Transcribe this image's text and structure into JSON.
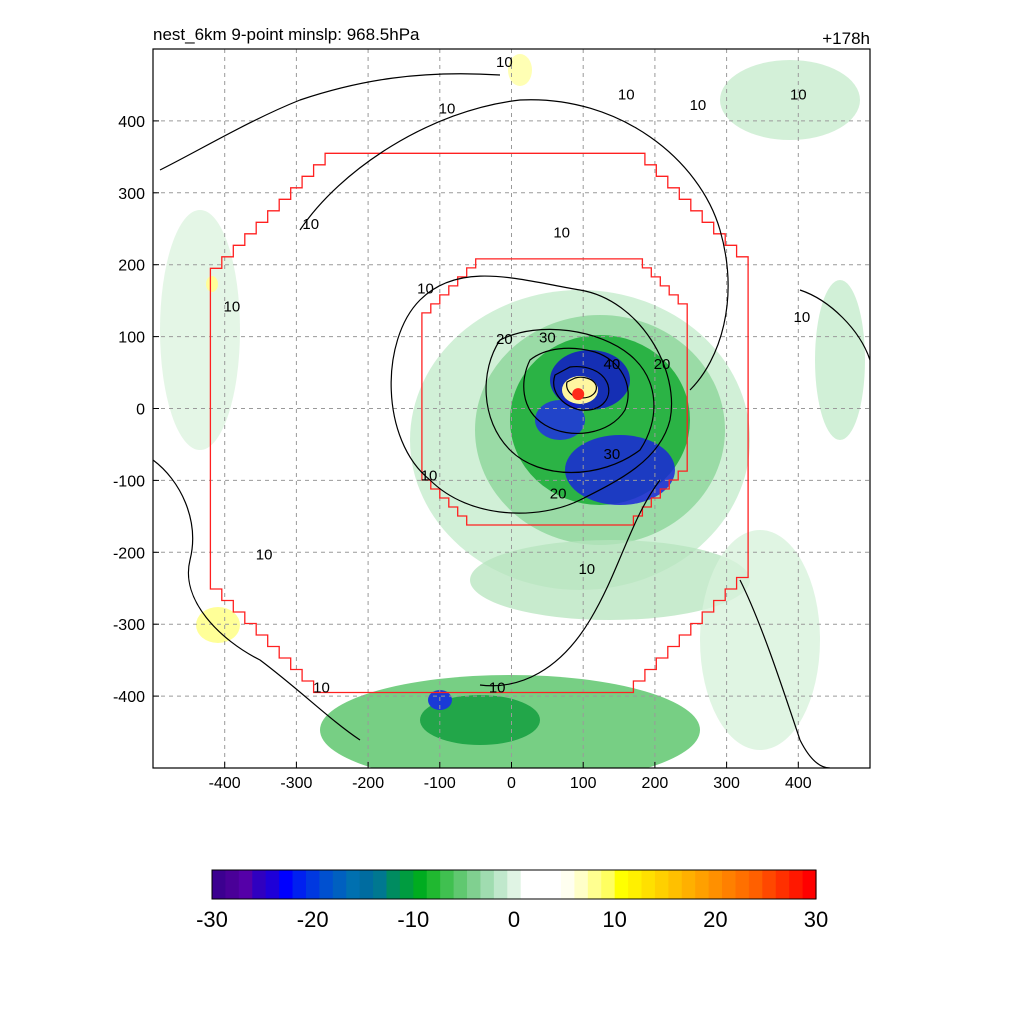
{
  "header": {
    "left_title": "nest_6km  9-point minslp: 968.5hPa",
    "right_title": "+178h"
  },
  "chart_data": {
    "type": "heatmap",
    "x_range": [
      -500,
      500
    ],
    "y_range": [
      -500,
      500
    ],
    "x_ticks": [
      -400,
      -300,
      -200,
      -100,
      0,
      100,
      200,
      300,
      400
    ],
    "y_ticks": [
      400,
      300,
      200,
      100,
      0,
      -100,
      -200,
      -300,
      -400
    ],
    "grid": true,
    "storm_center": {
      "x": 93,
      "y": 20,
      "color": "#ff2a1a"
    },
    "domain_outline_color": "#ff2020",
    "outer_domain_halfwidth": 375,
    "inner_domain_halfwidth": 185,
    "inner_domain_center": {
      "x": 60,
      "y": 23
    },
    "contour_labels": [
      {
        "text": "10",
        "x": -10,
        "y": 475
      },
      {
        "text": "10",
        "x": -90,
        "y": 410
      },
      {
        "text": "10",
        "x": 160,
        "y": 430
      },
      {
        "text": "10",
        "x": 260,
        "y": 415
      },
      {
        "text": "10",
        "x": 400,
        "y": 430
      },
      {
        "text": "10",
        "x": -280,
        "y": 250
      },
      {
        "text": "10",
        "x": 70,
        "y": 238
      },
      {
        "text": "10",
        "x": -120,
        "y": 160
      },
      {
        "text": "10",
        "x": -390,
        "y": 135
      },
      {
        "text": "10",
        "x": 405,
        "y": 120
      },
      {
        "text": "20",
        "x": -10,
        "y": 90
      },
      {
        "text": "30",
        "x": 50,
        "y": 92
      },
      {
        "text": "40",
        "x": 140,
        "y": 55
      },
      {
        "text": "20",
        "x": 210,
        "y": 55
      },
      {
        "text": "30",
        "x": 140,
        "y": -70
      },
      {
        "text": "20",
        "x": 65,
        "y": -125
      },
      {
        "text": "10",
        "x": -115,
        "y": -100
      },
      {
        "text": "10",
        "x": -345,
        "y": -210
      },
      {
        "text": "10",
        "x": 105,
        "y": -230
      },
      {
        "text": "10",
        "x": -265,
        "y": -395
      },
      {
        "text": "10",
        "x": -20,
        "y": -395
      }
    ],
    "colorbar": {
      "min": -30,
      "max": 30,
      "tick_labels": [
        "-30",
        "-20",
        "-10",
        "0",
        "10",
        "20",
        "30"
      ],
      "colors": [
        "#3c0090",
        "#4a0098",
        "#5500a8",
        "#3000c0",
        "#1e00d8",
        "#0000ff",
        "#0020f0",
        "#0038e0",
        "#0050d0",
        "#0060c0",
        "#0070b0",
        "#006ca0",
        "#007890",
        "#008c60",
        "#009c40",
        "#00ac20",
        "#20b830",
        "#40c050",
        "#60c870",
        "#80d090",
        "#a0dcb0",
        "#c0e8cc",
        "#e0f4e4",
        "#ffffff",
        "#ffffff",
        "#ffffff",
        "#fffff0",
        "#ffffc8",
        "#ffff90",
        "#ffff60",
        "#ffff00",
        "#fff000",
        "#ffe000",
        "#ffd000",
        "#ffc000",
        "#ffb000",
        "#ffa000",
        "#ff9000",
        "#ff8000",
        "#ff7000",
        "#ff6000",
        "#ff4800",
        "#ff3000",
        "#ff1800",
        "#ff0000"
      ]
    }
  }
}
